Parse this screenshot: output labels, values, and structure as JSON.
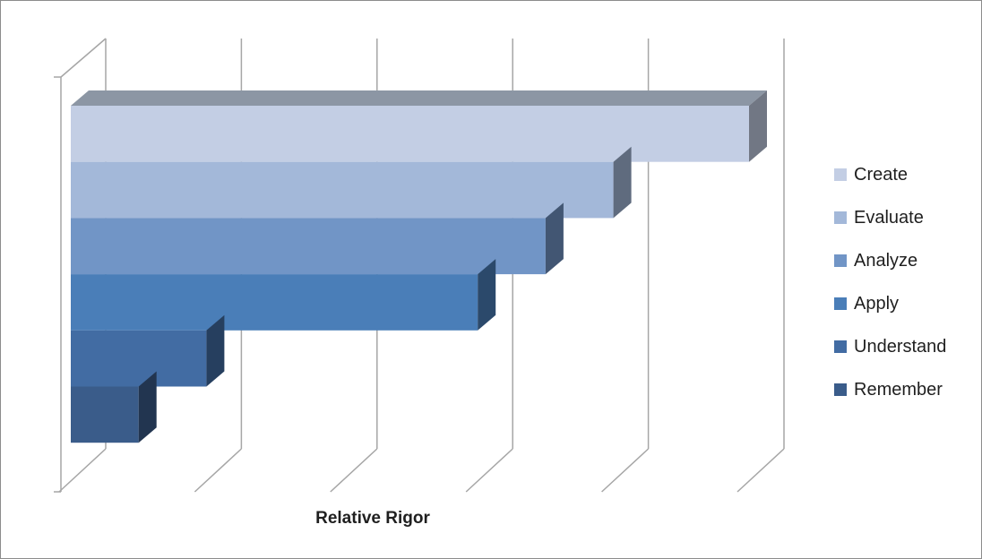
{
  "chart_data": {
    "type": "bar",
    "orientation": "horizontal",
    "style": "3d",
    "xlabel": "Relative Rigor",
    "ylabel": "",
    "xlim": [
      0,
      5
    ],
    "grid": true,
    "legend_position": "right",
    "categories": [
      "Create",
      "Evaluate",
      "Analyze",
      "Apply",
      "Understand",
      "Remember"
    ],
    "values": [
      5,
      4,
      3.5,
      3,
      1,
      0.5
    ],
    "colors": [
      "#C3CEE4",
      "#A3B8D9",
      "#7195C6",
      "#4A7EB8",
      "#426CA3",
      "#3A5C8A"
    ]
  }
}
